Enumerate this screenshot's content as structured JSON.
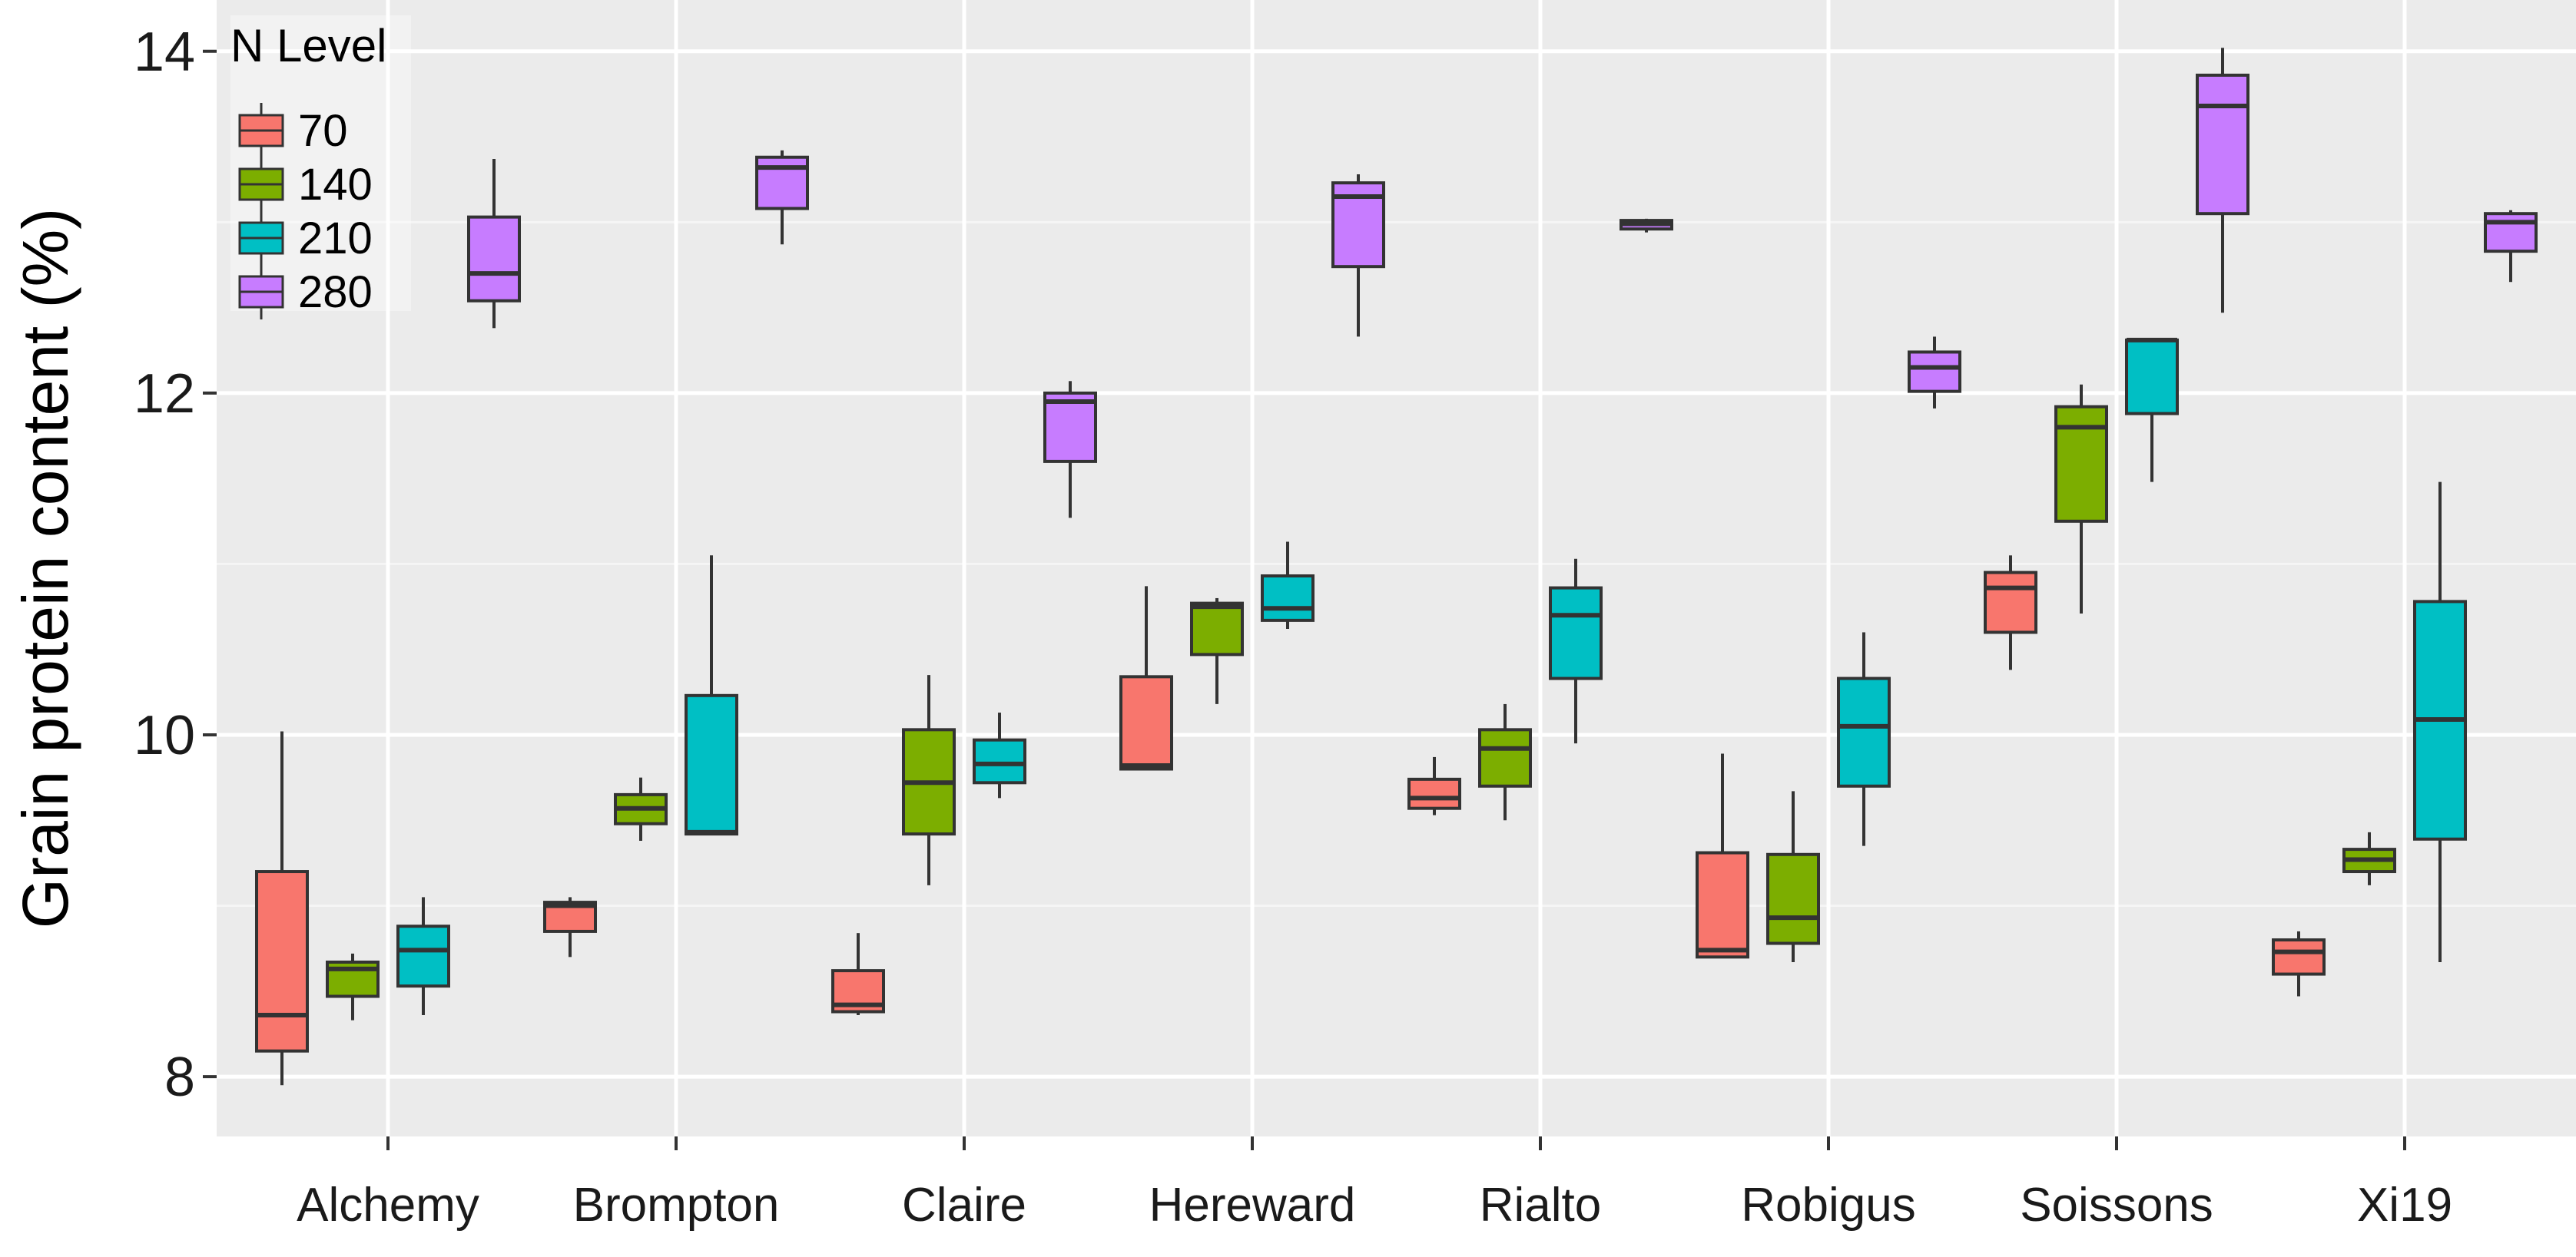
{
  "chart_data": {
    "type": "boxplot",
    "title": "",
    "xlabel": "",
    "ylabel": "Grain protein content (%)",
    "ylim": [
      7.65,
      14.3
    ],
    "yticks": [
      8,
      10,
      12,
      14
    ],
    "grid": true,
    "legend": {
      "title": "N Level",
      "position": "top-left-inside"
    },
    "categories": [
      "Alchemy",
      "Brompton",
      "Claire",
      "Hereward",
      "Rialto",
      "Robigus",
      "Soissons",
      "Xi19"
    ],
    "series": [
      {
        "name": "70",
        "color": "#F8766D",
        "boxes": [
          {
            "min": 7.95,
            "q1": 8.15,
            "median": 8.36,
            "q3": 9.2,
            "max": 10.02
          },
          {
            "min": 8.7,
            "q1": 8.85,
            "median": 9.0,
            "q3": 9.02,
            "max": 9.05
          },
          {
            "min": 8.36,
            "q1": 8.38,
            "median": 8.42,
            "q3": 8.62,
            "max": 8.84
          },
          {
            "min": 9.8,
            "q1": 9.8,
            "median": 9.82,
            "q3": 10.34,
            "max": 10.87
          },
          {
            "min": 9.53,
            "q1": 9.57,
            "median": 9.63,
            "q3": 9.74,
            "max": 9.87
          },
          {
            "min": 8.7,
            "q1": 8.7,
            "median": 8.74,
            "q3": 9.31,
            "max": 9.89
          },
          {
            "min": 10.38,
            "q1": 10.6,
            "median": 10.86,
            "q3": 10.95,
            "max": 11.05
          },
          {
            "min": 8.47,
            "q1": 8.6,
            "median": 8.73,
            "q3": 8.8,
            "max": 8.85
          }
        ]
      },
      {
        "name": "140",
        "color": "#7CAE00",
        "boxes": [
          {
            "min": 8.33,
            "q1": 8.47,
            "median": 8.63,
            "q3": 8.67,
            "max": 8.72
          },
          {
            "min": 9.38,
            "q1": 9.48,
            "median": 9.57,
            "q3": 9.65,
            "max": 9.75
          },
          {
            "min": 9.12,
            "q1": 9.42,
            "median": 9.72,
            "q3": 10.03,
            "max": 10.35
          },
          {
            "min": 10.18,
            "q1": 10.47,
            "median": 10.75,
            "q3": 10.77,
            "max": 10.8
          },
          {
            "min": 9.5,
            "q1": 9.7,
            "median": 9.92,
            "q3": 10.03,
            "max": 10.18
          },
          {
            "min": 8.67,
            "q1": 8.78,
            "median": 8.93,
            "q3": 9.3,
            "max": 9.67
          },
          {
            "min": 10.71,
            "q1": 11.25,
            "median": 11.8,
            "q3": 11.92,
            "max": 12.05
          },
          {
            "min": 9.12,
            "q1": 9.2,
            "median": 9.27,
            "q3": 9.33,
            "max": 9.43
          }
        ]
      },
      {
        "name": "210",
        "color": "#00BFC4",
        "boxes": [
          {
            "min": 8.36,
            "q1": 8.53,
            "median": 8.74,
            "q3": 8.88,
            "max": 9.05
          },
          {
            "min": 9.42,
            "q1": 9.42,
            "median": 9.43,
            "q3": 10.23,
            "max": 11.05
          },
          {
            "min": 9.63,
            "q1": 9.72,
            "median": 9.83,
            "q3": 9.97,
            "max": 10.13
          },
          {
            "min": 10.62,
            "q1": 10.67,
            "median": 10.74,
            "q3": 10.93,
            "max": 11.13
          },
          {
            "min": 9.95,
            "q1": 10.33,
            "median": 10.7,
            "q3": 10.86,
            "max": 11.03
          },
          {
            "min": 9.35,
            "q1": 9.7,
            "median": 10.05,
            "q3": 10.33,
            "max": 10.6
          },
          {
            "min": 11.48,
            "q1": 11.88,
            "median": 12.31,
            "q3": 12.31,
            "max": 12.31
          },
          {
            "min": 8.67,
            "q1": 9.39,
            "median": 10.09,
            "q3": 10.78,
            "max": 11.48
          }
        ]
      },
      {
        "name": "280",
        "color": "#C77CFF",
        "boxes": [
          {
            "min": 12.38,
            "q1": 12.54,
            "median": 12.7,
            "q3": 13.03,
            "max": 13.37
          },
          {
            "min": 12.87,
            "q1": 13.08,
            "median": 13.32,
            "q3": 13.38,
            "max": 13.42
          },
          {
            "min": 11.27,
            "q1": 11.6,
            "median": 11.95,
            "q3": 12.0,
            "max": 12.07
          },
          {
            "min": 12.33,
            "q1": 12.74,
            "median": 13.15,
            "q3": 13.23,
            "max": 13.28
          },
          {
            "min": 12.94,
            "q1": 12.96,
            "median": 12.99,
            "q3": 13.01,
            "max": 13.02
          },
          {
            "min": 11.91,
            "q1": 12.01,
            "median": 12.15,
            "q3": 12.24,
            "max": 12.33
          },
          {
            "min": 12.47,
            "q1": 13.05,
            "median": 13.68,
            "q3": 13.86,
            "max": 14.02
          },
          {
            "min": 12.65,
            "q1": 12.83,
            "median": 13.0,
            "q3": 13.05,
            "max": 13.07
          }
        ]
      }
    ]
  }
}
